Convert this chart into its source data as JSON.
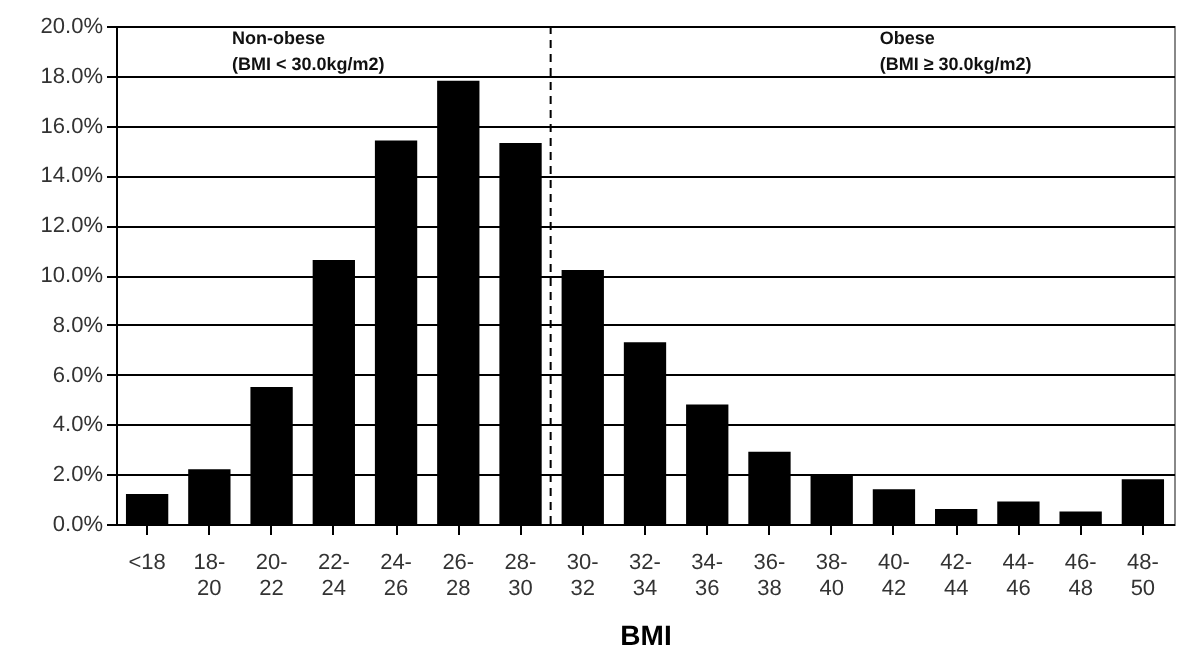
{
  "chart_data": {
    "type": "bar",
    "xlabel": "BMI",
    "categories": [
      "<18",
      "18-20",
      "20-22",
      "22-24",
      "24-26",
      "26-28",
      "28-30",
      "30-32",
      "32-34",
      "34-36",
      "36-38",
      "38-40",
      "40-42",
      "42-44",
      "44-46",
      "46-48",
      "48-50"
    ],
    "values": [
      1.2,
      2.2,
      5.5,
      10.6,
      15.4,
      17.8,
      15.3,
      10.2,
      7.3,
      4.8,
      2.9,
      2.0,
      1.4,
      0.6,
      0.9,
      0.5,
      1.8
    ],
    "color": "#000000",
    "ylim": [
      0,
      20
    ],
    "yticks": [
      {
        "value": 0,
        "label": "0.0%"
      },
      {
        "value": 2,
        "label": "2.0%"
      },
      {
        "value": 4,
        "label": "4.0%"
      },
      {
        "value": 6,
        "label": "6.0%"
      },
      {
        "value": 8,
        "label": "8.0%"
      },
      {
        "value": 10,
        "label": "10.0%"
      },
      {
        "value": 12,
        "label": "12.0%"
      },
      {
        "value": 14,
        "label": "14.0%"
      },
      {
        "value": 16,
        "label": "16.0%"
      },
      {
        "value": 18,
        "label": "18.0%"
      },
      {
        "value": 20,
        "label": "20.0%"
      }
    ],
    "grid": "y",
    "ref_lines": [
      {
        "axis": "x",
        "value": "30-32",
        "line_style": "dashed",
        "color": "#000000"
      }
    ],
    "annotations": [
      "Non-obese",
      "(BMI < 30.0kg/m2)",
      "Obese",
      "(BMI ≥ 30.0kg/m2)"
    ]
  }
}
